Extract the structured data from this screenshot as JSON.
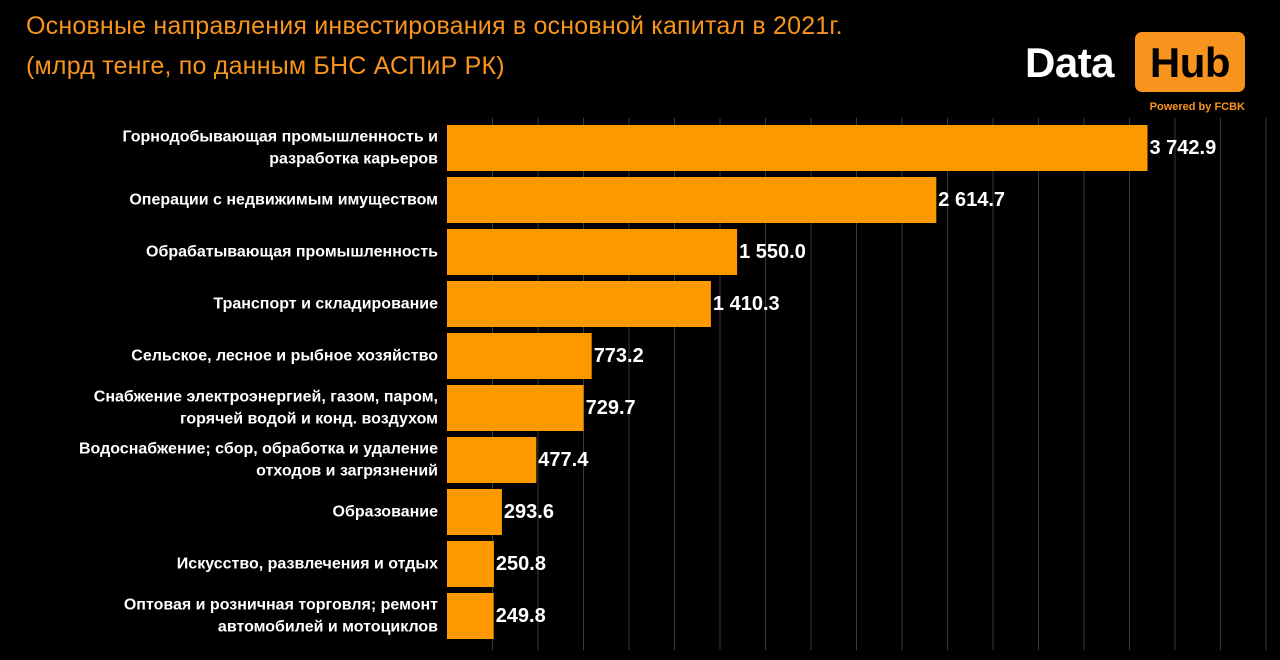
{
  "colors": {
    "background": "#000000",
    "accent": "#F7941D",
    "bar": "#FF9900",
    "gridline": "#3a3a3a",
    "text": "#ffffff"
  },
  "logo": {
    "word_left": "Data",
    "word_right": "Hub",
    "tagline": "Powered by FCBK"
  },
  "chart_data": {
    "type": "bar",
    "orientation": "horizontal",
    "title": "Основные направления инвестирования в основной капитал в 2021г.\n(млрд тенге, по данным БНС АСПиР РК)",
    "xlabel": "",
    "ylabel": "",
    "grid": true,
    "legend": "none",
    "xlim": [
      0,
      4200
    ],
    "categories": [
      "Горнодобывающая промышленность и\nразработка карьеров",
      "Операции с недвижимым имуществом",
      "Обрабатывающая промышленность",
      "Транспорт и складирование",
      "Сельское, лесное и рыбное хозяйство",
      "Снабжение электроэнергией, газом, паром,\nгорячей водой и конд. воздухом",
      "Водоснабжение; сбор, обработка и удаление\nотходов и загрязнений",
      "Образование",
      "Искусство, развлечения и отдых",
      "Оптовая и розничная торговля; ремонт\nавтомобилей и мотоциклов"
    ],
    "values": [
      3742.9,
      2614.7,
      1550.0,
      1410.3,
      773.2,
      729.7,
      477.4,
      293.6,
      250.8,
      249.8
    ],
    "value_labels": [
      "3 742.9",
      "2 614.7",
      "1 550.0",
      "1 410.3",
      "773.2",
      "729.7",
      "477.4",
      "293.6",
      "250.8",
      "249.8"
    ]
  }
}
